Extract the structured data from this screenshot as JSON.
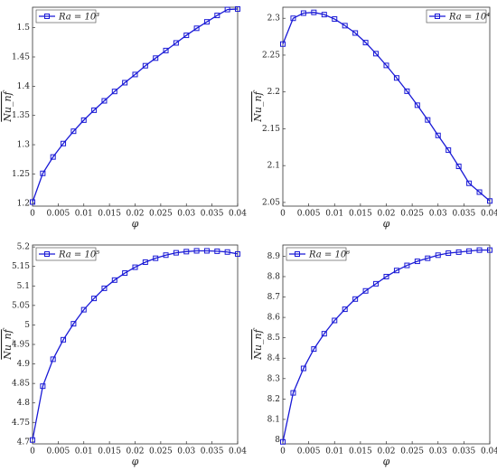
{
  "chart_data": [
    {
      "type": "line",
      "xlabel": "φ",
      "ylabel": "Nu_nf",
      "x": [
        0,
        0.002,
        0.004,
        0.006,
        0.008,
        0.01,
        0.012,
        0.014,
        0.016,
        0.018,
        0.02,
        0.022,
        0.024,
        0.026,
        0.028,
        0.03,
        0.032,
        0.034,
        0.036,
        0.038,
        0.04
      ],
      "series": [
        {
          "name": "Ra = 10³",
          "color": "#1a1ad6",
          "values": [
            1.202,
            1.251,
            1.279,
            1.302,
            1.323,
            1.342,
            1.359,
            1.375,
            1.391,
            1.406,
            1.42,
            1.435,
            1.448,
            1.461,
            1.474,
            1.487,
            1.499,
            1.51,
            1.521,
            1.531,
            1.532
          ]
        }
      ],
      "xlim": [
        0,
        0.04
      ],
      "ylim": [
        1.195,
        1.535
      ],
      "xticks": [
        0,
        0.005,
        0.01,
        0.015,
        0.02,
        0.025,
        0.03,
        0.035,
        0.04
      ],
      "yticks": [
        1.2,
        1.25,
        1.3,
        1.35,
        1.4,
        1.45,
        1.5
      ],
      "legend": "upper left"
    },
    {
      "type": "line",
      "xlabel": "φ",
      "ylabel": "Nu_nf",
      "x": [
        0,
        0.002,
        0.004,
        0.006,
        0.008,
        0.01,
        0.012,
        0.014,
        0.016,
        0.018,
        0.02,
        0.022,
        0.024,
        0.026,
        0.028,
        0.03,
        0.032,
        0.034,
        0.036,
        0.038,
        0.04
      ],
      "series": [
        {
          "name": "Ra = 10⁴",
          "color": "#1a1ad6",
          "values": [
            2.265,
            2.3,
            2.307,
            2.308,
            2.305,
            2.299,
            2.29,
            2.28,
            2.267,
            2.252,
            2.236,
            2.219,
            2.201,
            2.182,
            2.162,
            2.141,
            2.121,
            2.099,
            2.076,
            2.064,
            2.052
          ]
        }
      ],
      "xlim": [
        0,
        0.04
      ],
      "ylim": [
        2.045,
        2.315
      ],
      "xticks": [
        0,
        0.005,
        0.01,
        0.015,
        0.02,
        0.025,
        0.03,
        0.035,
        0.04
      ],
      "yticks": [
        2.05,
        2.1,
        2.15,
        2.2,
        2.25,
        2.3
      ],
      "legend": "upper right"
    },
    {
      "type": "line",
      "xlabel": "φ",
      "ylabel": "Nu_nf",
      "x": [
        0,
        0.002,
        0.004,
        0.006,
        0.008,
        0.01,
        0.012,
        0.014,
        0.016,
        0.018,
        0.02,
        0.022,
        0.024,
        0.026,
        0.028,
        0.03,
        0.032,
        0.034,
        0.036,
        0.038,
        0.04
      ],
      "series": [
        {
          "name": "Ra = 10⁵",
          "color": "#1a1ad6",
          "values": [
            4.705,
            4.843,
            4.912,
            4.962,
            5.003,
            5.039,
            5.068,
            5.094,
            5.115,
            5.133,
            5.148,
            5.161,
            5.171,
            5.179,
            5.185,
            5.188,
            5.19,
            5.19,
            5.189,
            5.187,
            5.182
          ]
        }
      ],
      "xlim": [
        0,
        0.04
      ],
      "ylim": [
        4.695,
        5.205
      ],
      "xticks": [
        0,
        0.005,
        0.01,
        0.015,
        0.02,
        0.025,
        0.03,
        0.035,
        0.04
      ],
      "yticks": [
        4.7,
        4.75,
        4.8,
        4.85,
        4.9,
        4.95,
        5,
        5.05,
        5.1,
        5.15,
        5.2
      ],
      "legend": "upper left"
    },
    {
      "type": "line",
      "xlabel": "φ",
      "ylabel": "Nu_nf",
      "x": [
        0,
        0.002,
        0.004,
        0.006,
        0.008,
        0.01,
        0.012,
        0.014,
        0.016,
        0.018,
        0.02,
        0.022,
        0.024,
        0.026,
        0.028,
        0.03,
        0.032,
        0.034,
        0.036,
        0.038,
        0.04
      ],
      "series": [
        {
          "name": "Ra = 10⁶",
          "color": "#1a1ad6",
          "values": [
            7.99,
            8.23,
            8.35,
            8.445,
            8.52,
            8.585,
            8.64,
            8.69,
            8.73,
            8.765,
            8.8,
            8.83,
            8.855,
            8.875,
            8.89,
            8.905,
            8.915,
            8.92,
            8.925,
            8.93,
            8.93
          ]
        }
      ],
      "xlim": [
        0,
        0.04
      ],
      "ylim": [
        7.98,
        8.955
      ],
      "xticks": [
        0,
        0.005,
        0.01,
        0.015,
        0.02,
        0.025,
        0.03,
        0.035,
        0.04
      ],
      "yticks": [
        8,
        8.1,
        8.2,
        8.3,
        8.4,
        8.5,
        8.6,
        8.7,
        8.8,
        8.9
      ],
      "legend": "upper left"
    }
  ]
}
